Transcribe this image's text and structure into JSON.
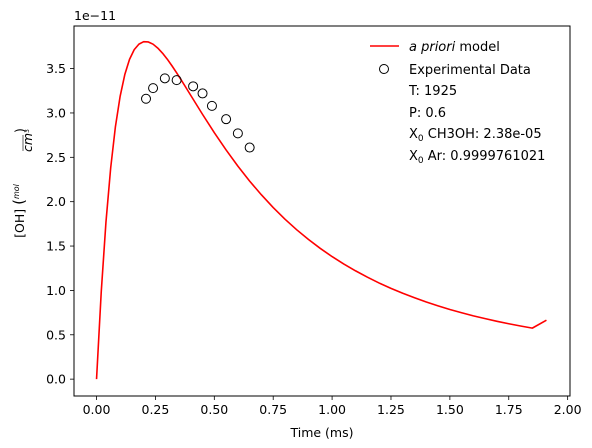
{
  "chart_data": {
    "type": "line",
    "title": "",
    "xlabel": "Time (ms)",
    "ylabel": "[OH]",
    "ylabel_unit_num": "mol",
    "ylabel_unit_den": "cm",
    "ylabel_unit_exp": "3",
    "y_offset_text": "1e−11",
    "xlim": [
      -0.0957,
      2.01
    ],
    "ylim": [
      -0.19,
      3.98
    ],
    "x_ticks": [
      0.0,
      0.25,
      0.5,
      0.75,
      1.0,
      1.25,
      1.5,
      1.75,
      2.0
    ],
    "x_tick_labels": [
      "0.00",
      "0.25",
      "0.50",
      "0.75",
      "1.00",
      "1.25",
      "1.50",
      "1.75",
      "2.00"
    ],
    "y_ticks": [
      0.0,
      0.5,
      1.0,
      1.5,
      2.0,
      2.5,
      3.0,
      3.5
    ],
    "y_tick_labels": [
      "0.0",
      "0.5",
      "1.0",
      "1.5",
      "2.0",
      "2.5",
      "3.0",
      "3.5"
    ],
    "grid": false,
    "legend_position": "top-right",
    "colors": {
      "model": "#ff0000",
      "experimental": "#000000"
    },
    "series": [
      {
        "name": "a priori model",
        "name_italic": "a priori",
        "name_rest": " model",
        "style": "line",
        "x": [
          0.0,
          0.02,
          0.04,
          0.06,
          0.08,
          0.1,
          0.12,
          0.14,
          0.16,
          0.18,
          0.2,
          0.22,
          0.24,
          0.26,
          0.28,
          0.3,
          0.32,
          0.34,
          0.36,
          0.38,
          0.4,
          0.45,
          0.5,
          0.55,
          0.6,
          0.65,
          0.7,
          0.75,
          0.8,
          0.85,
          0.9,
          0.95,
          1.0,
          1.05,
          1.1,
          1.15,
          1.2,
          1.25,
          1.3,
          1.35,
          1.4,
          1.45,
          1.5,
          1.55,
          1.6,
          1.65,
          1.7,
          1.75,
          1.8,
          1.85,
          1.91
        ],
        "values": [
          0.0,
          0.985,
          1.77,
          2.38,
          2.843,
          3.186,
          3.433,
          3.604,
          3.714,
          3.776,
          3.803,
          3.8,
          3.775,
          3.731,
          3.674,
          3.607,
          3.532,
          3.453,
          3.369,
          3.284,
          3.198,
          2.984,
          2.778,
          2.583,
          2.401,
          2.232,
          2.077,
          1.934,
          1.803,
          1.683,
          1.574,
          1.473,
          1.381,
          1.297,
          1.22,
          1.149,
          1.083,
          1.023,
          0.968,
          0.917,
          0.869,
          0.826,
          0.785,
          0.748,
          0.713,
          0.682,
          0.652,
          0.624,
          0.599,
          0.575,
          0.664
        ]
      },
      {
        "name": "Experimental Data",
        "style": "markers",
        "x": [
          0.21,
          0.24,
          0.29,
          0.34,
          0.41,
          0.45,
          0.49,
          0.55,
          0.6,
          0.65
        ],
        "values": [
          3.16,
          3.28,
          3.39,
          3.37,
          3.3,
          3.22,
          3.08,
          2.93,
          2.77,
          2.61
        ]
      }
    ],
    "annotations": [
      {
        "text": "T: 1925"
      },
      {
        "text": "P: 0.6"
      },
      {
        "pre": "X",
        "sub": "0",
        "post": " CH3OH: 2.38e-05"
      },
      {
        "pre": "X",
        "sub": "0",
        "post": " Ar: 0.9999761021"
      }
    ]
  }
}
